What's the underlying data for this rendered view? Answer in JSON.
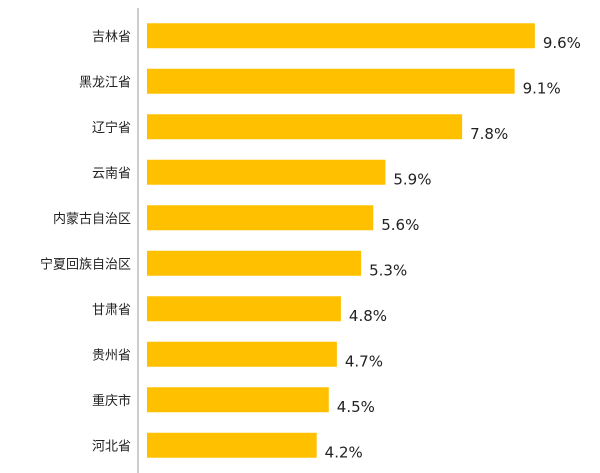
{
  "chart_data": {
    "type": "bar",
    "orientation": "horizontal",
    "categories": [
      "吉林省",
      "黑龙江省",
      "辽宁省",
      "云南省",
      "内蒙古自治区",
      "宁夏回族自治区",
      "甘肃省",
      "贵州省",
      "重庆市",
      "河北省"
    ],
    "values": [
      9.6,
      9.1,
      7.8,
      5.9,
      5.6,
      5.3,
      4.8,
      4.7,
      4.5,
      4.2
    ],
    "value_labels": [
      "9.6%",
      "9.1%",
      "7.8%",
      "5.9%",
      "5.6%",
      "5.3%",
      "4.8%",
      "4.7%",
      "4.5%",
      "4.2%"
    ],
    "unit": "%",
    "title": "",
    "xlabel": "",
    "ylabel": "",
    "xlim": [
      0,
      10
    ],
    "grid": false,
    "legend": "none",
    "colors": {
      "bar": "#FFC000",
      "axis": "#999999",
      "text": "#222222"
    }
  }
}
